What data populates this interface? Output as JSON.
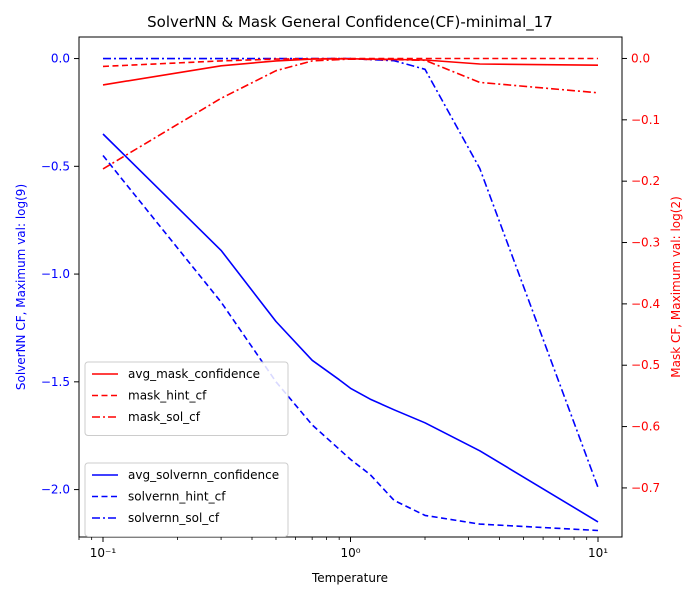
{
  "chart_data": {
    "type": "line",
    "title": "SolverNN & Mask General Confidence(CF)-minimal_17",
    "xlabel": "Temperature",
    "ylabel_left": "SolverNN CF, Maximum val: log(9)",
    "ylabel_right": "Mask CF, Maximum val: log(2)",
    "x_scale": "log",
    "xlim": [
      0.08,
      12.5
    ],
    "ylim_left": [
      -2.22,
      0.1
    ],
    "ylim_right": [
      -0.78,
      0.035
    ],
    "grid": false,
    "x_ticks": [
      {
        "value": 0.1,
        "label": "10⁻¹"
      },
      {
        "value": 1,
        "label": "10⁰"
      },
      {
        "value": 10,
        "label": "10¹"
      }
    ],
    "y_ticks_left": [
      {
        "value": 0.0,
        "label": "0.0"
      },
      {
        "value": -0.5,
        "label": "−0.5"
      },
      {
        "value": -1.0,
        "label": "−1.0"
      },
      {
        "value": -1.5,
        "label": "−1.5"
      },
      {
        "value": -2.0,
        "label": "−2.0"
      }
    ],
    "y_ticks_right": [
      {
        "value": 0.0,
        "label": "0.0"
      },
      {
        "value": -0.1,
        "label": "−0.1"
      },
      {
        "value": -0.2,
        "label": "−0.2"
      },
      {
        "value": -0.3,
        "label": "−0.3"
      },
      {
        "value": -0.4,
        "label": "−0.4"
      },
      {
        "value": -0.5,
        "label": "−0.5"
      },
      {
        "value": -0.6,
        "label": "−0.6"
      },
      {
        "value": -0.7,
        "label": "−0.7"
      }
    ],
    "series_right": [
      {
        "name": "avg_mask_confidence",
        "color": "#ff0000",
        "dash": "solid",
        "x": [
          0.1,
          0.3,
          0.5,
          0.7,
          1.0,
          1.5,
          2.0,
          3.33,
          10
        ],
        "y": [
          -0.043,
          -0.012,
          -0.004,
          -0.001,
          -0.0005,
          -0.0015,
          -0.0025,
          -0.009,
          -0.011
        ]
      },
      {
        "name": "mask_hint_cf",
        "color": "#ff0000",
        "dash": "dashed",
        "x": [
          0.1,
          0.3,
          0.5,
          0.7,
          1.0,
          1.5,
          2.0,
          3.33,
          10
        ],
        "y": [
          -0.013,
          -0.004,
          -0.001,
          -0.0003,
          0.0,
          0.0,
          0.0,
          0.0,
          0.0
        ]
      },
      {
        "name": "mask_sol_cf",
        "color": "#ff0000",
        "dash": "dashdot",
        "x": [
          0.1,
          0.3,
          0.5,
          0.7,
          1.0,
          1.5,
          2.0,
          3.33,
          10
        ],
        "y": [
          -0.18,
          -0.065,
          -0.02,
          -0.004,
          -0.001,
          -0.002,
          -0.003,
          -0.039,
          -0.056
        ]
      }
    ],
    "series_left": [
      {
        "name": "avg_solvernn_confidence",
        "color": "#0000ff",
        "dash": "solid",
        "x": [
          0.1,
          0.3,
          0.5,
          0.7,
          0.9,
          1.0,
          1.2,
          1.5,
          2.0,
          3.33,
          10
        ],
        "y": [
          -0.35,
          -0.89,
          -1.22,
          -1.4,
          -1.49,
          -1.53,
          -1.58,
          -1.63,
          -1.69,
          -1.82,
          -2.15
        ]
      },
      {
        "name": "solvernn_hint_cf",
        "color": "#0000ff",
        "dash": "dashed",
        "x": [
          0.1,
          0.3,
          0.5,
          0.7,
          1.0,
          1.2,
          1.5,
          2.0,
          3.33,
          10
        ],
        "y": [
          -0.45,
          -1.13,
          -1.5,
          -1.7,
          -1.86,
          -1.93,
          -2.05,
          -2.12,
          -2.16,
          -2.19
        ]
      },
      {
        "name": "solvernn_sol_cf",
        "color": "#0000ff",
        "dash": "dashdot",
        "x": [
          0.1,
          0.3,
          0.5,
          0.7,
          1.0,
          1.5,
          2.0,
          3.33,
          10
        ],
        "y": [
          0.0,
          0.0,
          0.0,
          0.0,
          0.0,
          -0.01,
          -0.05,
          -0.51,
          -1.99
        ]
      }
    ],
    "legends": [
      {
        "placement": "center-left",
        "series_group": "series_right"
      },
      {
        "placement": "lower-left",
        "series_group": "series_left"
      }
    ]
  }
}
